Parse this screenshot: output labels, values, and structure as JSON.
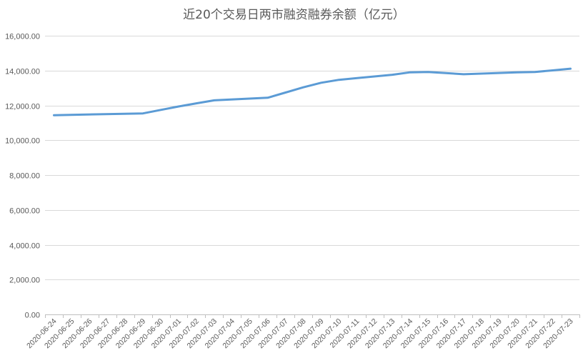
{
  "chart_data": {
    "type": "line",
    "title": "近20个交易日两市融资融券余额（亿元）",
    "xlabel": "",
    "ylabel": "",
    "ylim": [
      0,
      16000
    ],
    "yticks": [
      0,
      2000,
      4000,
      6000,
      8000,
      10000,
      12000,
      14000,
      16000
    ],
    "ytick_labels": [
      "0.00",
      "2,000.00",
      "4,000.00",
      "6,000.00",
      "8,000.00",
      "10,000.00",
      "12,000.00",
      "14,000.00",
      "16,000.00"
    ],
    "grid": true,
    "legend": "none",
    "line_color": "#5b9bd5",
    "categories": [
      "2020-06-24",
      "2020-06-25",
      "2020-06-26",
      "2020-06-27",
      "2020-06-28",
      "2020-06-29",
      "2020-06-30",
      "2020-07-01",
      "2020-07-02",
      "2020-07-03",
      "2020-07-04",
      "2020-07-05",
      "2020-07-06",
      "2020-07-07",
      "2020-07-08",
      "2020-07-09",
      "2020-07-10",
      "2020-07-11",
      "2020-07-12",
      "2020-07-13",
      "2020-07-14",
      "2020-07-15",
      "2020-07-16",
      "2020-07-17",
      "2020-07-18",
      "2020-07-19",
      "2020-07-20",
      "2020-07-21",
      "2020-07-22",
      "2020-07-23"
    ],
    "series": [
      {
        "name": "",
        "points": [
          {
            "x": "2020-06-24",
            "y": 11440
          },
          {
            "x": "2020-06-29",
            "y": 11540
          },
          {
            "x": "2020-06-30",
            "y": 11740
          },
          {
            "x": "2020-07-01",
            "y": 11940
          },
          {
            "x": "2020-07-02",
            "y": 12120
          },
          {
            "x": "2020-07-03",
            "y": 12290
          },
          {
            "x": "2020-07-06",
            "y": 12440
          },
          {
            "x": "2020-07-07",
            "y": 12740
          },
          {
            "x": "2020-07-08",
            "y": 13040
          },
          {
            "x": "2020-07-09",
            "y": 13300
          },
          {
            "x": "2020-07-10",
            "y": 13470
          },
          {
            "x": "2020-07-13",
            "y": 13760
          },
          {
            "x": "2020-07-14",
            "y": 13900
          },
          {
            "x": "2020-07-15",
            "y": 13920
          },
          {
            "x": "2020-07-16",
            "y": 13860
          },
          {
            "x": "2020-07-17",
            "y": 13790
          },
          {
            "x": "2020-07-20",
            "y": 13900
          },
          {
            "x": "2020-07-21",
            "y": 13920
          },
          {
            "x": "2020-07-22",
            "y": 14010
          },
          {
            "x": "2020-07-23",
            "y": 14110
          }
        ]
      }
    ]
  }
}
